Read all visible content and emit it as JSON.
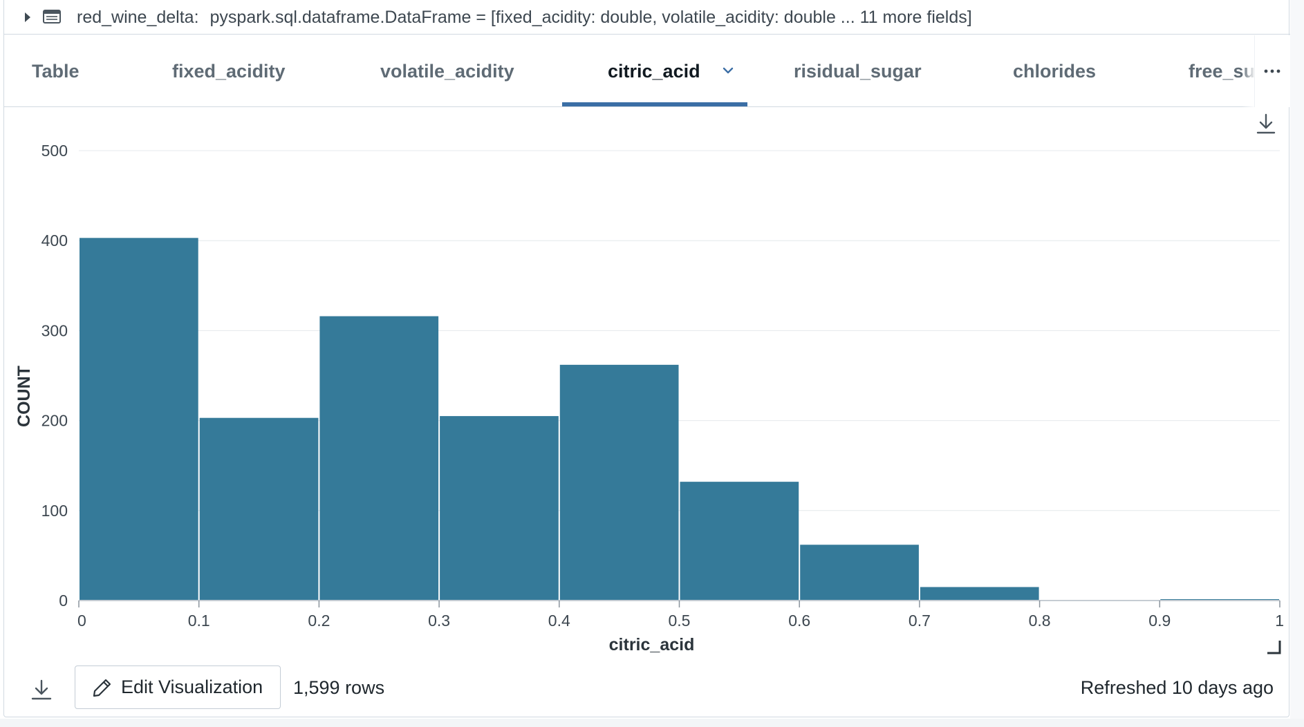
{
  "schema": {
    "name": "red_wine_delta:",
    "type_text": "pyspark.sql.dataframe.DataFrame = [fixed_acidity: double, volatile_acidity: double ... 11 more fields]"
  },
  "tabs": [
    {
      "label": "Table",
      "active": false
    },
    {
      "label": "fixed_acidity",
      "active": false
    },
    {
      "label": "volatile_acidity",
      "active": false
    },
    {
      "label": "citric_acid",
      "active": true
    },
    {
      "label": "risidual_sugar",
      "active": false
    },
    {
      "label": "chlorides",
      "active": false
    },
    {
      "label": "free_su",
      "active": false
    }
  ],
  "icons": {
    "expand": "caret-right-icon",
    "table": "table-icon",
    "tab_menu": "chevron-down-icon",
    "more": "more-horizontal-icon",
    "download": "download-icon",
    "resize": "resize-corner-icon",
    "edit": "pencil-icon"
  },
  "colors": {
    "bar": "#357a99",
    "active_tab_underline": "#3b6ea5"
  },
  "chart_data": {
    "type": "bar",
    "xlabel": "citric_acid",
    "ylabel": "COUNT",
    "xlim": [
      0,
      1
    ],
    "ylim": [
      0,
      500
    ],
    "x_ticks": [
      "0",
      "0.1",
      "0.2",
      "0.3",
      "0.4",
      "0.5",
      "0.6",
      "0.7",
      "0.8",
      "0.9",
      "1"
    ],
    "y_ticks": [
      "0",
      "100",
      "200",
      "300",
      "400",
      "500"
    ],
    "grid": true,
    "bins": [
      {
        "start": 0.0,
        "end": 0.1,
        "count": 403
      },
      {
        "start": 0.1,
        "end": 0.2,
        "count": 203
      },
      {
        "start": 0.2,
        "end": 0.3,
        "count": 316
      },
      {
        "start": 0.3,
        "end": 0.4,
        "count": 205
      },
      {
        "start": 0.4,
        "end": 0.5,
        "count": 262
      },
      {
        "start": 0.5,
        "end": 0.6,
        "count": 132
      },
      {
        "start": 0.6,
        "end": 0.7,
        "count": 62
      },
      {
        "start": 0.7,
        "end": 0.8,
        "count": 15
      },
      {
        "start": 0.8,
        "end": 0.9,
        "count": 0
      },
      {
        "start": 0.9,
        "end": 1.0,
        "count": 1
      }
    ]
  },
  "footer": {
    "edit_label": "Edit Visualization",
    "rows_label": "1,599 rows",
    "refreshed_label": "Refreshed 10 days ago"
  }
}
